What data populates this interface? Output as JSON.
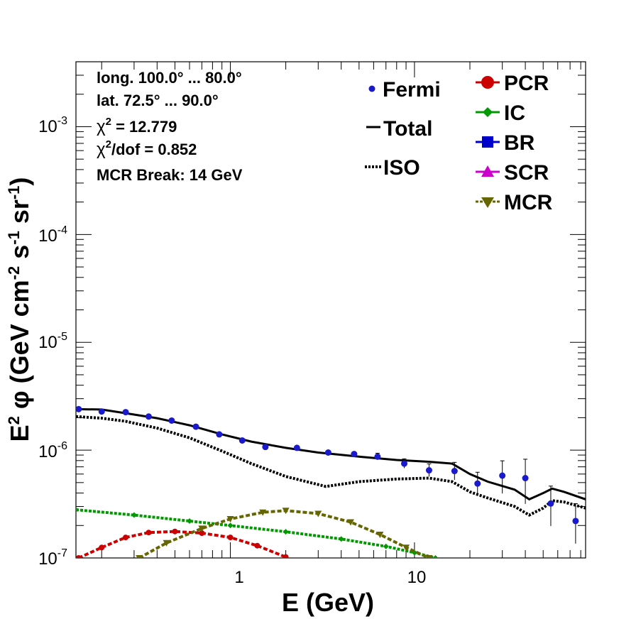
{
  "chart_data": {
    "type": "scatter",
    "xscale": "log",
    "yscale": "log",
    "xlim": [
      0.145,
      85
    ],
    "ylim": [
      1e-07,
      0.004
    ],
    "xlabel": "E (GeV)",
    "ylabel": {
      "base": "E",
      "exp": "2",
      "phi": "φ",
      "units": "(GeV cm",
      "u1": "-2",
      "s": " s",
      "u2": "-1",
      "sr": " sr",
      "u3": "-1",
      "close": ")"
    },
    "x_ticks": [
      {
        "label": "1",
        "value": 1
      },
      {
        "label": "10",
        "value": 10
      }
    ],
    "y_ticks": [
      {
        "base": "10",
        "exp": "-7",
        "value": 1e-07
      },
      {
        "base": "10",
        "exp": "-6",
        "value": 1e-06
      },
      {
        "base": "10",
        "exp": "-5",
        "value": 1e-05
      },
      {
        "base": "10",
        "exp": "-4",
        "value": 0.0001
      },
      {
        "base": "10",
        "exp": "-3",
        "value": 0.001
      }
    ],
    "annotations": {
      "long": "long. 100.0° ... 80.0°",
      "lat": "lat. 72.5° ... 90.0°",
      "chi2_symbol": "χ",
      "chi2_sup": "2",
      "chi2_rest": " = 12.779",
      "chidof_symbol": "χ",
      "chidof_sup": "2",
      "chidof_rest": "/dof = 0.852",
      "mcr_break": "MCR Break: 14 GeV"
    },
    "legend_left": [
      {
        "label": "Fermi",
        "style": "marker",
        "color": "#1a1acc"
      },
      {
        "label": "Total",
        "style": "solid",
        "color": "#000000"
      },
      {
        "label": "ISO",
        "style": "dotted",
        "color": "#000000"
      }
    ],
    "legend_right": [
      {
        "label": "PCR",
        "color": "#cc0000",
        "marker": "circle"
      },
      {
        "label": "IC",
        "color": "#009900",
        "marker": "diamond"
      },
      {
        "label": "BR",
        "color": "#0000cc",
        "marker": "square"
      },
      {
        "label": "SCR",
        "color": "#cc00cc",
        "marker": "triangle-up"
      },
      {
        "label": "MCR",
        "color": "#666600",
        "marker": "triangle-down"
      }
    ],
    "fermi": [
      {
        "x": 0.15,
        "y": 2.4e-06
      },
      {
        "x": 0.2,
        "y": 2.28e-06
      },
      {
        "x": 0.27,
        "y": 2.25e-06
      },
      {
        "x": 0.36,
        "y": 2.05e-06
      },
      {
        "x": 0.48,
        "y": 1.88e-06
      },
      {
        "x": 0.65,
        "y": 1.65e-06
      },
      {
        "x": 0.87,
        "y": 1.4e-06
      },
      {
        "x": 1.16,
        "y": 1.23e-06
      },
      {
        "x": 1.55,
        "y": 1.07e-06
      },
      {
        "x": 2.3,
        "y": 1.05e-06
      },
      {
        "x": 3.4,
        "y": 9.5e-07
      },
      {
        "x": 4.7,
        "y": 9.2e-07
      },
      {
        "x": 6.3,
        "y": 8.7e-07
      },
      {
        "x": 8.8,
        "y": 7.5e-07
      },
      {
        "x": 12.0,
        "y": 6.5e-07
      },
      {
        "x": 16.5,
        "y": 6.4e-07
      },
      {
        "x": 22.0,
        "y": 4.9e-07
      },
      {
        "x": 30.0,
        "y": 5.8e-07
      },
      {
        "x": 40.0,
        "y": 5.5e-07
      },
      {
        "x": 55.0,
        "y": 3.2e-07
      },
      {
        "x": 75.0,
        "y": 2.2e-07
      }
    ],
    "total": [
      {
        "x": 0.145,
        "y": 2.4e-06
      },
      {
        "x": 0.2,
        "y": 2.38e-06
      },
      {
        "x": 0.27,
        "y": 2.2e-06
      },
      {
        "x": 0.4,
        "y": 1.98e-06
      },
      {
        "x": 0.6,
        "y": 1.7e-06
      },
      {
        "x": 0.9,
        "y": 1.4e-06
      },
      {
        "x": 1.3,
        "y": 1.2e-06
      },
      {
        "x": 2.0,
        "y": 1.05e-06
      },
      {
        "x": 3.0,
        "y": 9.5e-07
      },
      {
        "x": 5.0,
        "y": 8.7e-07
      },
      {
        "x": 8.0,
        "y": 8.1e-07
      },
      {
        "x": 12.0,
        "y": 7.8e-07
      },
      {
        "x": 16.0,
        "y": 7.5e-07
      },
      {
        "x": 20.0,
        "y": 6e-07
      },
      {
        "x": 25.0,
        "y": 5.1e-07
      },
      {
        "x": 35.0,
        "y": 4.3e-07
      },
      {
        "x": 42.0,
        "y": 3.5e-07
      },
      {
        "x": 50.0,
        "y": 4e-07
      },
      {
        "x": 56.0,
        "y": 4.4e-07
      },
      {
        "x": 65.0,
        "y": 4.1e-07
      },
      {
        "x": 85.0,
        "y": 3.5e-07
      }
    ],
    "iso": [
      {
        "x": 0.145,
        "y": 2.05e-06
      },
      {
        "x": 0.2,
        "y": 1.98e-06
      },
      {
        "x": 0.27,
        "y": 1.85e-06
      },
      {
        "x": 0.4,
        "y": 1.6e-06
      },
      {
        "x": 0.6,
        "y": 1.3e-06
      },
      {
        "x": 0.9,
        "y": 9.8e-07
      },
      {
        "x": 1.3,
        "y": 7.5e-07
      },
      {
        "x": 2.0,
        "y": 5.7e-07
      },
      {
        "x": 3.3,
        "y": 4.6e-07
      },
      {
        "x": 5.0,
        "y": 5.1e-07
      },
      {
        "x": 8.0,
        "y": 5.4e-07
      },
      {
        "x": 12.0,
        "y": 5.5e-07
      },
      {
        "x": 16.0,
        "y": 5.1e-07
      },
      {
        "x": 20.0,
        "y": 4.1e-07
      },
      {
        "x": 25.0,
        "y": 3.6e-07
      },
      {
        "x": 35.0,
        "y": 3e-07
      },
      {
        "x": 42.0,
        "y": 2.5e-07
      },
      {
        "x": 50.0,
        "y": 2.9e-07
      },
      {
        "x": 56.0,
        "y": 3.4e-07
      },
      {
        "x": 65.0,
        "y": 3.3e-07
      },
      {
        "x": 85.0,
        "y": 2.9e-07
      }
    ],
    "ic": [
      {
        "x": 0.145,
        "y": 2.8e-07
      },
      {
        "x": 0.3,
        "y": 2.5e-07
      },
      {
        "x": 0.6,
        "y": 2.2e-07
      },
      {
        "x": 1.0,
        "y": 2e-07
      },
      {
        "x": 2.0,
        "y": 1.75e-07
      },
      {
        "x": 4.0,
        "y": 1.5e-07
      },
      {
        "x": 7.0,
        "y": 1.28e-07
      },
      {
        "x": 10.0,
        "y": 1.12e-07
      },
      {
        "x": 13.0,
        "y": 1e-07
      }
    ],
    "pcr": [
      {
        "x": 0.15,
        "y": 1e-07
      },
      {
        "x": 0.2,
        "y": 1.25e-07
      },
      {
        "x": 0.27,
        "y": 1.55e-07
      },
      {
        "x": 0.36,
        "y": 1.72e-07
      },
      {
        "x": 0.5,
        "y": 1.76e-07
      },
      {
        "x": 0.7,
        "y": 1.7e-07
      },
      {
        "x": 1.0,
        "y": 1.55e-07
      },
      {
        "x": 1.4,
        "y": 1.3e-07
      },
      {
        "x": 2.0,
        "y": 1.02e-07
      }
    ],
    "mcr": [
      {
        "x": 0.32,
        "y": 1e-07
      },
      {
        "x": 0.45,
        "y": 1.38e-07
      },
      {
        "x": 0.7,
        "y": 1.88e-07
      },
      {
        "x": 1.0,
        "y": 2.3e-07
      },
      {
        "x": 1.5,
        "y": 2.65e-07
      },
      {
        "x": 2.0,
        "y": 2.75e-07
      },
      {
        "x": 3.0,
        "y": 2.58e-07
      },
      {
        "x": 4.5,
        "y": 2.15e-07
      },
      {
        "x": 6.5,
        "y": 1.65e-07
      },
      {
        "x": 9.0,
        "y": 1.25e-07
      },
      {
        "x": 12.0,
        "y": 1e-07
      }
    ],
    "grid": false
  }
}
